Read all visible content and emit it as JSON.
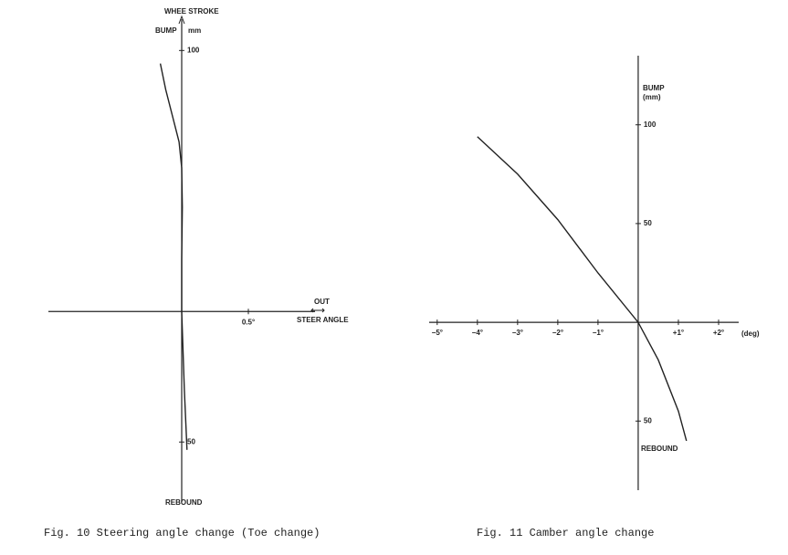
{
  "chart_data": [
    {
      "type": "line",
      "title": "Fig. 10  Steering angle change (Toe change)",
      "y_label": "WHEE STROKE",
      "y_unit": "mm",
      "bump_label": "BUMP",
      "out_label": "OUT",
      "x_label": "STEER ANGLE",
      "rebound_label": "REBOUND",
      "xlim": [
        -1,
        1
      ],
      "ylim": [
        -73,
        112
      ],
      "xticks": [
        {
          "value": 0.5,
          "label": "0.5°"
        }
      ],
      "yticks": [
        100,
        {
          "value": -50,
          "label": "50"
        }
      ],
      "series": [
        {
          "color": "#222222",
          "x": [
            -0.16,
            -0.12,
            -0.07,
            -0.02,
            0,
            0.005,
            0,
            0,
            0.02,
            0.04
          ],
          "values": [
            95,
            85,
            75,
            65,
            55,
            40,
            20,
            0,
            -30,
            -53
          ]
        }
      ]
    },
    {
      "type": "line",
      "title": "Fig. 11  Camber angle change",
      "bump_label": "BUMP",
      "y_unit": "(mm)",
      "x_unit": "(deg)",
      "rebound_label": "REBOUND",
      "xlim": [
        -5.2,
        2.5
      ],
      "ylim": [
        -85,
        135
      ],
      "xticks": [
        {
          "value": -5,
          "label": "−5°"
        },
        {
          "value": -4,
          "label": "−4°"
        },
        {
          "value": -3,
          "label": "−3°"
        },
        {
          "value": -2,
          "label": "−2°"
        },
        {
          "value": -1,
          "label": "−1°"
        },
        {
          "value": 1,
          "label": "+1°"
        },
        {
          "value": 2,
          "label": "+2°"
        }
      ],
      "yticks": [
        100,
        50,
        {
          "value": -50,
          "label": "50"
        }
      ],
      "series": [
        {
          "color": "#222222",
          "x": [
            -4.0,
            -3.0,
            -2.0,
            -1.0,
            0,
            0.5,
            1.0,
            1.2
          ],
          "values": [
            94,
            75,
            52,
            25,
            0,
            -19,
            -45,
            -60
          ]
        }
      ]
    }
  ]
}
